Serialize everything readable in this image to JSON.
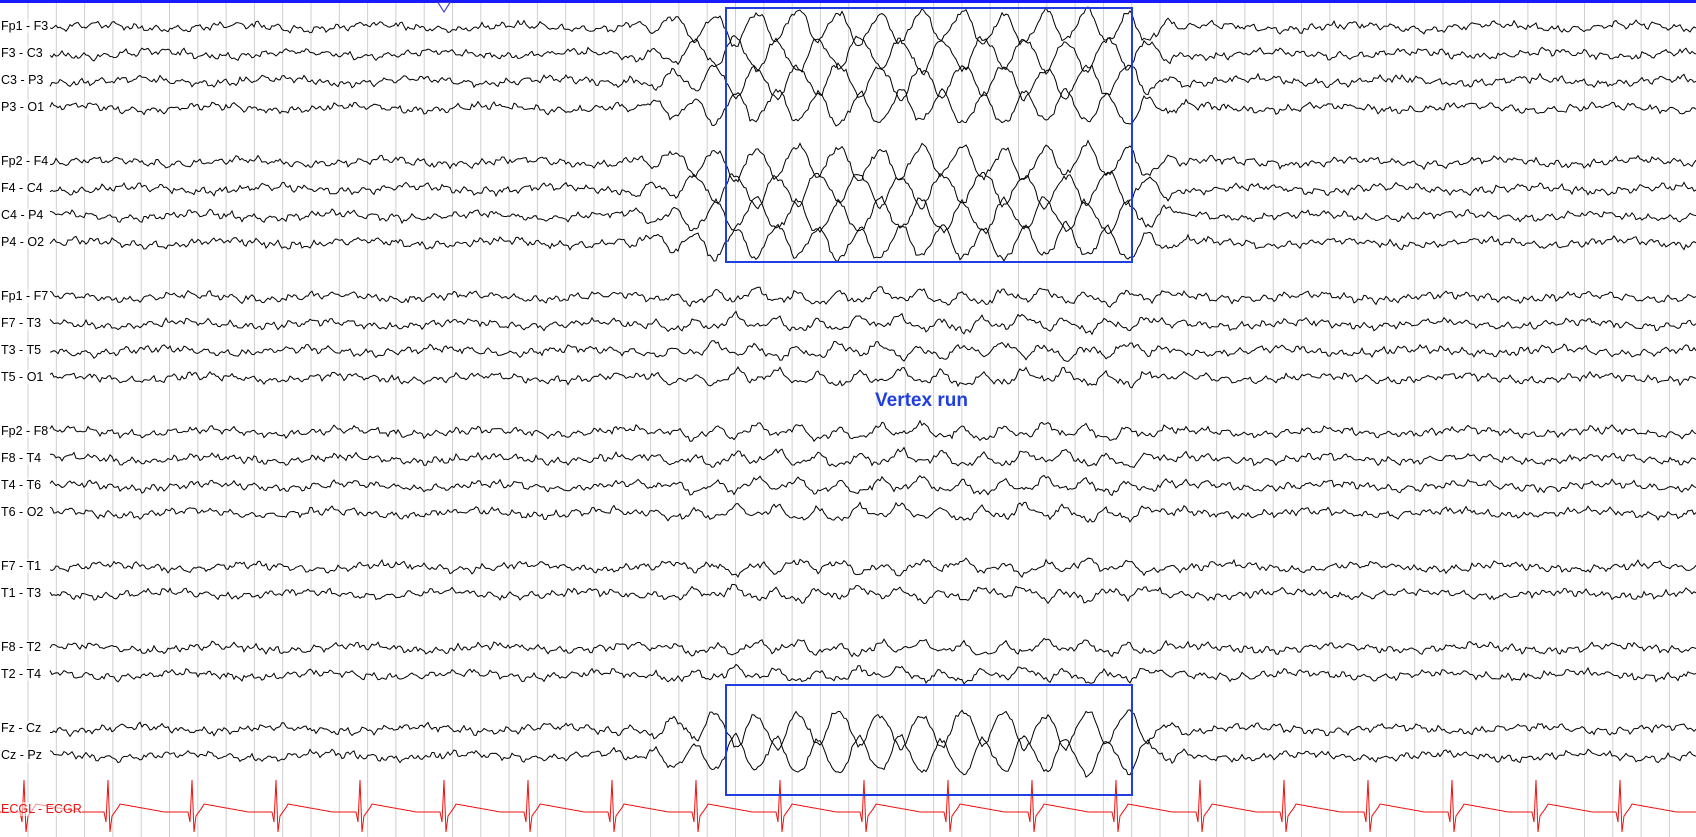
{
  "viewer": {
    "annotation": "Vertex run",
    "accent_color": "#1f3fe0",
    "ecg_color": "#ee1111",
    "trace_color": "#000000",
    "grid_color": "#cfcfcf",
    "marker_icon": "triangle-down-icon"
  },
  "channels": [
    {
      "label": "Fp1 - F3"
    },
    {
      "label": "F3 - C3"
    },
    {
      "label": "C3 - P3"
    },
    {
      "label": "P3 - O1"
    },
    {
      "label": "Fp2 - F4"
    },
    {
      "label": "F4 - C4"
    },
    {
      "label": "C4 - P4"
    },
    {
      "label": "P4 - O2"
    },
    {
      "label": "Fp1 - F7"
    },
    {
      "label": "F7 - T3"
    },
    {
      "label": "T3 - T5"
    },
    {
      "label": "T5 - O1"
    },
    {
      "label": "Fp2 - F8"
    },
    {
      "label": "F8 - T4"
    },
    {
      "label": "T4 - T6"
    },
    {
      "label": "T6 - O2"
    },
    {
      "label": "F7 - T1"
    },
    {
      "label": "T1 - T3"
    },
    {
      "label": "F8 - T2"
    },
    {
      "label": "T2 - T4"
    },
    {
      "label": "Fz - Cz"
    },
    {
      "label": "Cz - Pz"
    },
    {
      "label": "ECGL - ECGR"
    }
  ]
}
